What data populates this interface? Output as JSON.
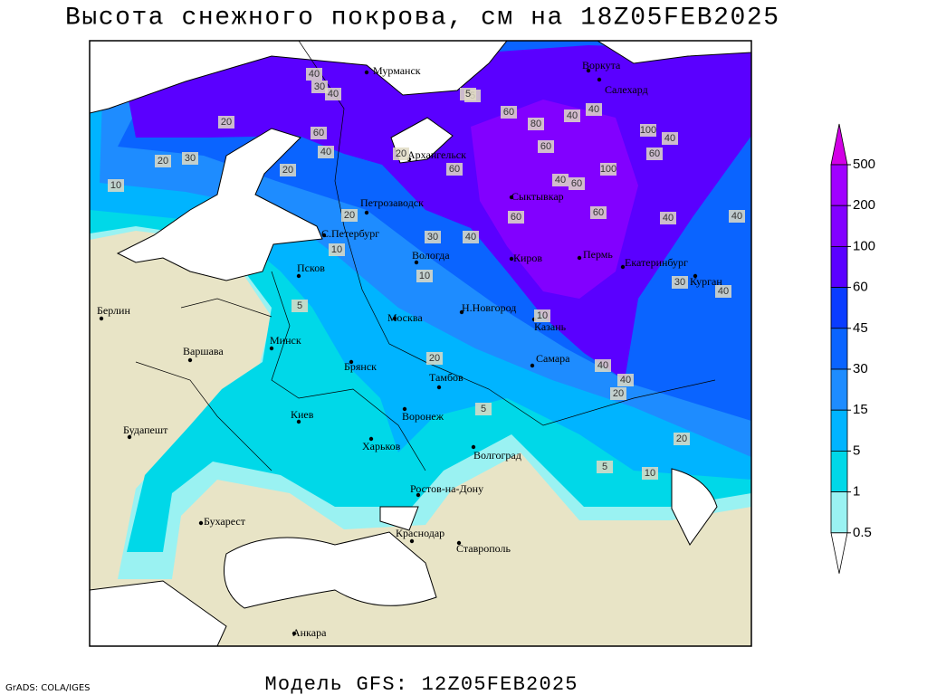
{
  "title": "Высота снежного покрова, см на 18Z05FEB2025",
  "footer": "Модель GFS: 12Z05FEB2025",
  "credit": "GrADS: COLA/IGES",
  "legend": {
    "levels": [
      500,
      200,
      100,
      60,
      45,
      30,
      15,
      5,
      1,
      0.5
    ],
    "colors": [
      "#d200e6",
      "#a000ff",
      "#8200ff",
      "#5a00ff",
      "#0a3cff",
      "#0a64ff",
      "#1e8cff",
      "#00b4ff",
      "#00d8e8",
      "#9af2f2",
      "#ffffff"
    ]
  },
  "cities": [
    "Мурманск",
    "Воркута",
    "Салехард",
    "Архангельск",
    "Сыктывкар",
    "Петрозаводск",
    "С.Петербург",
    "Вологда",
    "Киров",
    "Пермь",
    "Екатеринбург",
    "Курган",
    "Псков",
    "Н.Новгород",
    "Казань",
    "Москва",
    "Берлин",
    "Варшава",
    "Минск",
    "Брянск",
    "Тамбов",
    "Самара",
    "Киев",
    "Воронеж",
    "Харьков",
    "Будапешт",
    "Волгоград",
    "Ростов-на-Дону",
    "Бухарест",
    "Краснодар",
    "Ставрополь",
    "Анкара"
  ],
  "contour_labels": [
    40,
    30,
    40,
    20,
    30,
    20,
    10,
    60,
    40,
    20,
    20,
    10,
    5,
    60,
    80,
    60,
    40,
    40,
    100,
    40,
    60,
    100,
    60,
    40,
    60,
    60,
    40,
    60,
    40,
    30,
    40,
    30,
    40,
    10,
    20,
    40,
    40,
    20,
    20,
    10,
    5,
    10,
    5,
    5,
    5,
    20
  ]
}
